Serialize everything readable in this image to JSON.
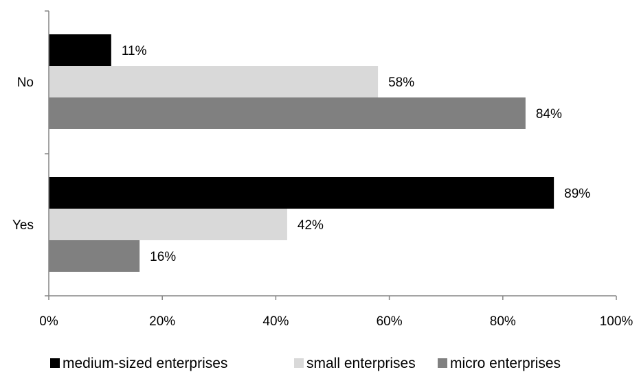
{
  "chart_data": {
    "type": "bar",
    "orientation": "horizontal",
    "categories": [
      "No",
      "Yes"
    ],
    "series": [
      {
        "name": "medium-sized enterprises",
        "color": "#000000",
        "values": [
          11,
          89
        ]
      },
      {
        "name": "small enterprises",
        "color": "#d9d9d9",
        "values": [
          58,
          42
        ]
      },
      {
        "name": "micro enterprises",
        "color": "#808080",
        "values": [
          84,
          16
        ]
      }
    ],
    "data_labels": [
      [
        "11%",
        "89%"
      ],
      [
        "58%",
        "42%"
      ],
      [
        "84%",
        "16%"
      ]
    ],
    "xlim": [
      0,
      100
    ],
    "xticks": [
      0,
      20,
      40,
      60,
      80,
      100
    ],
    "xtick_labels": [
      "0%",
      "20%",
      "40%",
      "60%",
      "80%",
      "100%"
    ],
    "title": "",
    "xlabel": "",
    "ylabel": "",
    "grid": false,
    "legend_position": "bottom"
  }
}
